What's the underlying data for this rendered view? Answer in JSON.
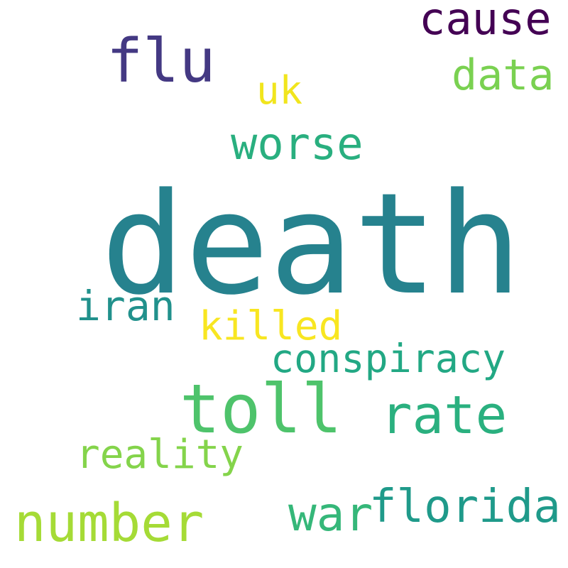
{
  "words": [
    {
      "id": "death",
      "text": "death",
      "color": "#26828e"
    },
    {
      "id": "toll",
      "text": "toll",
      "color": "#4ec36b"
    },
    {
      "id": "flu",
      "text": "flu",
      "color": "#443983"
    },
    {
      "id": "cause",
      "text": "cause",
      "color": "#440154"
    },
    {
      "id": "data",
      "text": "data",
      "color": "#7ad151"
    },
    {
      "id": "uk",
      "text": "uk",
      "color": "#f1e51d"
    },
    {
      "id": "worse",
      "text": "worse",
      "color": "#29af7f"
    },
    {
      "id": "iran",
      "text": "iran",
      "color": "#21918c"
    },
    {
      "id": "killed",
      "text": "killed",
      "color": "#f8e621"
    },
    {
      "id": "conspiracy",
      "text": "conspiracy",
      "color": "#22a884"
    },
    {
      "id": "rate",
      "text": "rate",
      "color": "#2ab07f"
    },
    {
      "id": "reality",
      "text": "reality",
      "color": "#84d44b"
    },
    {
      "id": "number",
      "text": "number",
      "color": "#a5db36"
    },
    {
      "id": "war",
      "text": "war",
      "color": "#35b779"
    },
    {
      "id": "florida",
      "text": "florida",
      "color": "#1f9a8a"
    }
  ]
}
